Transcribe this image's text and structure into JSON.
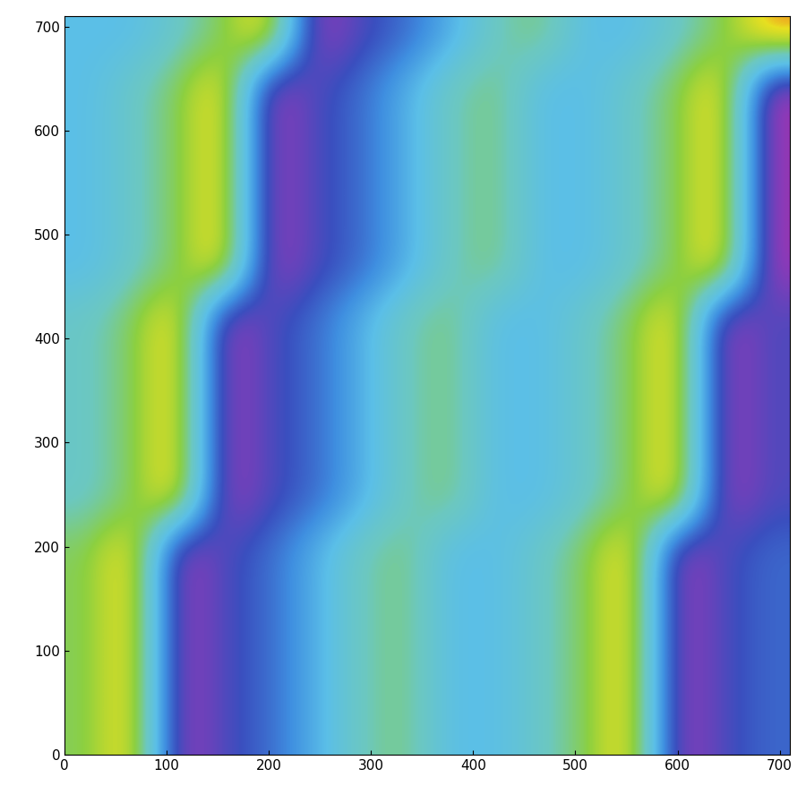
{
  "chart_data": {
    "type": "heatmap",
    "xlim": [
      0,
      710
    ],
    "ylim": [
      0,
      710
    ],
    "xticks": [
      0,
      100,
      200,
      300,
      400,
      500,
      600,
      700
    ],
    "yticks": [
      0,
      100,
      200,
      300,
      400,
      500,
      600,
      700
    ],
    "value_range": [
      0,
      1
    ],
    "cells": [
      [
        0.72,
        0.95,
        0.08,
        0.22,
        0.3,
        0.45,
        0.62,
        0.7,
        0.5,
        0.5,
        0.6,
        0.72,
        0.95,
        0.08,
        0.22,
        0.3
      ],
      [
        0.72,
        0.95,
        0.08,
        0.22,
        0.3,
        0.45,
        0.62,
        0.7,
        0.5,
        0.5,
        0.6,
        0.72,
        0.95,
        0.08,
        0.22,
        0.3
      ],
      [
        0.72,
        0.95,
        0.08,
        0.22,
        0.3,
        0.45,
        0.62,
        0.7,
        0.5,
        0.5,
        0.6,
        0.72,
        0.95,
        0.08,
        0.22,
        0.3
      ],
      [
        0.72,
        0.95,
        0.08,
        0.22,
        0.3,
        0.45,
        0.62,
        0.7,
        0.5,
        0.5,
        0.6,
        0.72,
        0.95,
        0.08,
        0.22,
        0.3
      ],
      [
        0.72,
        0.95,
        0.08,
        0.22,
        0.3,
        0.45,
        0.62,
        0.7,
        0.5,
        0.5,
        0.6,
        0.72,
        0.95,
        0.08,
        0.22,
        0.3
      ],
      [
        0.6,
        0.72,
        0.95,
        0.08,
        0.22,
        0.3,
        0.45,
        0.62,
        0.7,
        0.5,
        0.5,
        0.6,
        0.72,
        0.95,
        0.08,
        0.22
      ],
      [
        0.6,
        0.72,
        0.95,
        0.08,
        0.22,
        0.3,
        0.45,
        0.62,
        0.7,
        0.5,
        0.5,
        0.6,
        0.72,
        0.95,
        0.08,
        0.22
      ],
      [
        0.6,
        0.72,
        0.95,
        0.08,
        0.22,
        0.3,
        0.45,
        0.62,
        0.7,
        0.5,
        0.5,
        0.6,
        0.72,
        0.95,
        0.08,
        0.22
      ],
      [
        0.6,
        0.72,
        0.95,
        0.08,
        0.22,
        0.3,
        0.45,
        0.62,
        0.7,
        0.5,
        0.5,
        0.6,
        0.72,
        0.95,
        0.08,
        0.22
      ],
      [
        0.6,
        0.72,
        0.95,
        0.08,
        0.22,
        0.3,
        0.45,
        0.62,
        0.7,
        0.5,
        0.5,
        0.6,
        0.72,
        0.95,
        0.08,
        0.22
      ],
      [
        0.5,
        0.6,
        0.72,
        0.95,
        0.08,
        0.22,
        0.3,
        0.45,
        0.62,
        0.7,
        0.5,
        0.5,
        0.6,
        0.72,
        0.95,
        0.08
      ],
      [
        0.5,
        0.6,
        0.72,
        0.95,
        0.08,
        0.22,
        0.3,
        0.45,
        0.62,
        0.7,
        0.5,
        0.5,
        0.6,
        0.72,
        0.95,
        0.08
      ],
      [
        0.5,
        0.6,
        0.72,
        0.95,
        0.08,
        0.22,
        0.3,
        0.45,
        0.62,
        0.7,
        0.5,
        0.5,
        0.6,
        0.72,
        0.95,
        0.08
      ],
      [
        0.5,
        0.6,
        0.72,
        0.95,
        0.08,
        0.22,
        0.3,
        0.45,
        0.62,
        0.7,
        0.5,
        0.5,
        0.6,
        0.72,
        0.95,
        0.08
      ],
      [
        0.5,
        0.6,
        0.72,
        0.95,
        0.08,
        0.22,
        0.3,
        0.45,
        0.62,
        0.7,
        0.5,
        0.5,
        0.6,
        0.72,
        0.95,
        0.08
      ],
      [
        0.5,
        0.5,
        0.6,
        0.72,
        0.95,
        0.08,
        0.22,
        0.3,
        0.45,
        0.62,
        0.7,
        0.5,
        0.5,
        0.6,
        0.72,
        0.95
      ]
    ]
  }
}
